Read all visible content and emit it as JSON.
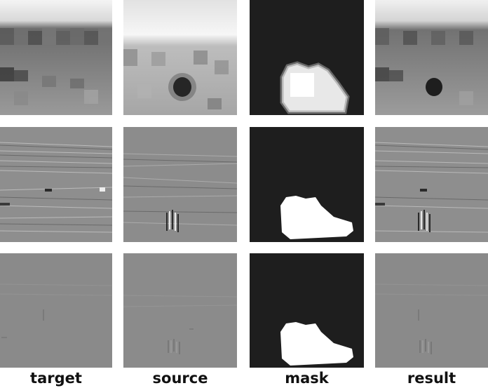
{
  "figure": {
    "columns": [
      {
        "key": "target",
        "label": "target"
      },
      {
        "key": "source",
        "label": "source"
      },
      {
        "key": "mask",
        "label": "mask"
      },
      {
        "key": "result",
        "label": "result"
      }
    ],
    "rows": [
      {
        "key": "pixelated-intensity"
      },
      {
        "key": "gradient-texture"
      },
      {
        "key": "flat-gray"
      }
    ]
  }
}
